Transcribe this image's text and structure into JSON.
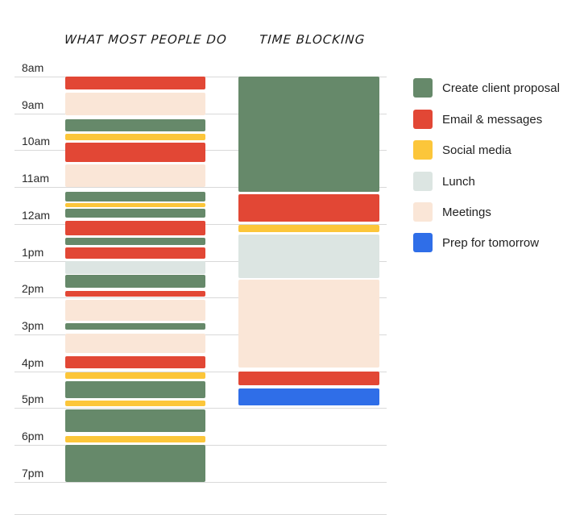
{
  "chart_data": {
    "type": "timeline",
    "title": "",
    "columns": [
      "WHAT MOST PEOPLE DO",
      "TIME BLOCKING"
    ],
    "hours": [
      "8am",
      "9am",
      "10am",
      "11am",
      "12am",
      "1pm",
      "2pm",
      "3pm",
      "4pm",
      "5pm",
      "6pm",
      "7pm"
    ],
    "categories": [
      {
        "name": "Create client proposal",
        "color": "#66896a"
      },
      {
        "name": "Email & messages",
        "color": "#e24735"
      },
      {
        "name": "Social media",
        "color": "#fcc63a"
      },
      {
        "name": "Lunch",
        "color": "#dce5e2"
      },
      {
        "name": "Meetings",
        "color": "#fae6d7"
      },
      {
        "name": "Prep for tomorrow",
        "color": "#2f6ee8"
      }
    ],
    "series": [
      {
        "name": "WHAT MOST PEOPLE DO",
        "blocks": [
          {
            "category": "Email & messages",
            "start": 0.0,
            "end": 0.35
          },
          {
            "category": "Meetings",
            "start": 0.43,
            "end": 1.06
          },
          {
            "category": "Create client proposal",
            "start": 1.16,
            "end": 1.49
          },
          {
            "category": "Social media",
            "start": 1.55,
            "end": 1.73
          },
          {
            "category": "Email & messages",
            "start": 1.8,
            "end": 2.32
          },
          {
            "category": "Meetings",
            "start": 2.39,
            "end": 3.0
          },
          {
            "category": "Create client proposal",
            "start": 3.13,
            "end": 3.4
          },
          {
            "category": "Social media",
            "start": 3.44,
            "end": 3.55
          },
          {
            "category": "Create client proposal",
            "start": 3.59,
            "end": 3.83
          },
          {
            "category": "Email & messages",
            "start": 3.92,
            "end": 4.31
          },
          {
            "category": "Create client proposal",
            "start": 4.38,
            "end": 4.58
          },
          {
            "category": "Email & messages",
            "start": 4.64,
            "end": 4.95
          },
          {
            "category": "Lunch",
            "start": 5.0,
            "end": 5.35
          },
          {
            "category": "Create client proposal",
            "start": 5.39,
            "end": 5.74
          },
          {
            "category": "Email & messages",
            "start": 5.81,
            "end": 5.98
          },
          {
            "category": "Meetings",
            "start": 6.07,
            "end": 6.64
          },
          {
            "category": "Create client proposal",
            "start": 6.7,
            "end": 6.88
          },
          {
            "category": "Meetings",
            "start": 6.97,
            "end": 7.5
          },
          {
            "category": "Email & messages",
            "start": 7.6,
            "end": 7.93
          },
          {
            "category": "Social media",
            "start": 8.02,
            "end": 8.2
          },
          {
            "category": "Create client proposal",
            "start": 8.26,
            "end": 8.72
          },
          {
            "category": "Social media",
            "start": 8.79,
            "end": 8.94
          },
          {
            "category": "Create client proposal",
            "start": 9.03,
            "end": 9.66
          },
          {
            "category": "Social media",
            "start": 9.75,
            "end": 9.93
          },
          {
            "category": "Create client proposal",
            "start": 10.0,
            "end": 11.0
          }
        ]
      },
      {
        "name": "TIME BLOCKING",
        "blocks": [
          {
            "category": "Create client proposal",
            "start": 0.0,
            "end": 3.13
          },
          {
            "category": "Email & messages",
            "start": 3.2,
            "end": 3.94
          },
          {
            "category": "Social media",
            "start": 4.03,
            "end": 4.23
          },
          {
            "category": "Lunch",
            "start": 4.29,
            "end": 5.47
          },
          {
            "category": "Meetings",
            "start": 5.52,
            "end": 7.89
          },
          {
            "category": "Email & messages",
            "start": 8.0,
            "end": 8.39
          },
          {
            "category": "Prep for tomorrow",
            "start": 8.46,
            "end": 8.92
          }
        ]
      }
    ],
    "legend_position": "right",
    "grid": true
  },
  "columns": {
    "left_title": "WHAT MOST PEOPLE DO",
    "right_title": "TIME BLOCKING"
  },
  "legend": {
    "items": [
      {
        "label": "Create client proposal",
        "color": "#66896a"
      },
      {
        "label": "Email & messages",
        "color": "#e24735"
      },
      {
        "label": "Social media",
        "color": "#fcc63a"
      },
      {
        "label": "Lunch",
        "color": "#dce5e2"
      },
      {
        "label": "Meetings",
        "color": "#fae6d7"
      },
      {
        "label": "Prep for tomorrow",
        "color": "#2f6ee8"
      }
    ]
  }
}
